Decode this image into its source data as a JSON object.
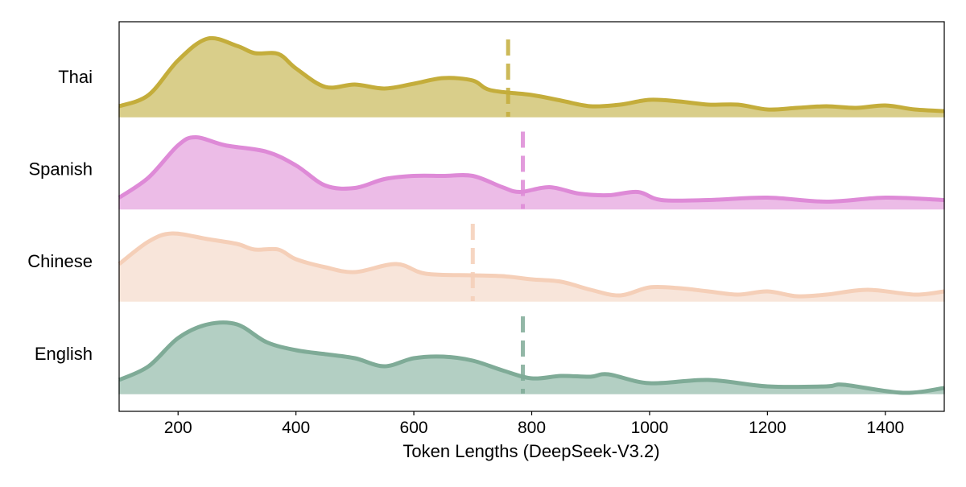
{
  "chart_data": {
    "type": "area",
    "subtype": "ridgeline",
    "xlabel": "Token Lengths (DeepSeek-V3.2)",
    "ylabel": "",
    "xlim": [
      100,
      1500
    ],
    "xticks": [
      200,
      400,
      600,
      800,
      1000,
      1200,
      1400
    ],
    "grid": false,
    "series": [
      {
        "name": "Thai",
        "line_color": "#c4ad3b",
        "fill_color": "#d9ce8a",
        "median": 760,
        "x": [
          100,
          150,
          200,
          250,
          300,
          330,
          370,
          400,
          450,
          500,
          550,
          600,
          650,
          700,
          730,
          800,
          850,
          900,
          950,
          1000,
          1050,
          1100,
          1150,
          1200,
          1250,
          1300,
          1350,
          1400,
          1450,
          1500
        ],
        "y": [
          0.13,
          0.27,
          0.7,
          0.97,
          0.88,
          0.79,
          0.78,
          0.6,
          0.37,
          0.4,
          0.35,
          0.41,
          0.48,
          0.45,
          0.33,
          0.27,
          0.2,
          0.13,
          0.15,
          0.21,
          0.19,
          0.15,
          0.15,
          0.09,
          0.11,
          0.13,
          0.11,
          0.14,
          0.09,
          0.07
        ]
      },
      {
        "name": "Spanish",
        "line_color": "#de8ad7",
        "fill_color": "#ecbce7",
        "median": 785,
        "x": [
          100,
          150,
          200,
          230,
          280,
          350,
          400,
          450,
          500,
          550,
          600,
          650,
          700,
          750,
          780,
          830,
          880,
          930,
          980,
          1020,
          1100,
          1200,
          1300,
          1400,
          1500
        ],
        "y": [
          0.14,
          0.39,
          0.79,
          0.89,
          0.79,
          0.71,
          0.54,
          0.29,
          0.26,
          0.37,
          0.41,
          0.41,
          0.41,
          0.27,
          0.21,
          0.27,
          0.19,
          0.17,
          0.21,
          0.11,
          0.11,
          0.14,
          0.09,
          0.14,
          0.11
        ]
      },
      {
        "name": "Chinese",
        "line_color": "#f5cfb8",
        "fill_color": "#f8e5da",
        "median": 700,
        "x": [
          100,
          150,
          190,
          250,
          300,
          330,
          370,
          400,
          450,
          500,
          570,
          620,
          700,
          750,
          800,
          850,
          900,
          950,
          1000,
          1050,
          1100,
          1150,
          1200,
          1250,
          1300,
          1370,
          1450,
          1500
        ],
        "y": [
          0.46,
          0.74,
          0.84,
          0.77,
          0.71,
          0.64,
          0.64,
          0.52,
          0.42,
          0.36,
          0.46,
          0.34,
          0.32,
          0.31,
          0.27,
          0.24,
          0.14,
          0.07,
          0.17,
          0.16,
          0.12,
          0.08,
          0.12,
          0.06,
          0.08,
          0.14,
          0.08,
          0.12
        ]
      },
      {
        "name": "English",
        "line_color": "#7fab97",
        "fill_color": "#b3cfc3",
        "median": 785,
        "x": [
          100,
          150,
          200,
          250,
          300,
          350,
          400,
          450,
          500,
          550,
          600,
          650,
          700,
          750,
          800,
          850,
          900,
          930,
          1000,
          1100,
          1200,
          1300,
          1330,
          1430,
          1500
        ],
        "y": [
          0.17,
          0.34,
          0.69,
          0.86,
          0.86,
          0.64,
          0.54,
          0.49,
          0.44,
          0.34,
          0.44,
          0.46,
          0.41,
          0.29,
          0.19,
          0.22,
          0.21,
          0.24,
          0.13,
          0.17,
          0.09,
          0.09,
          0.11,
          0.01,
          0.07
        ]
      }
    ]
  }
}
